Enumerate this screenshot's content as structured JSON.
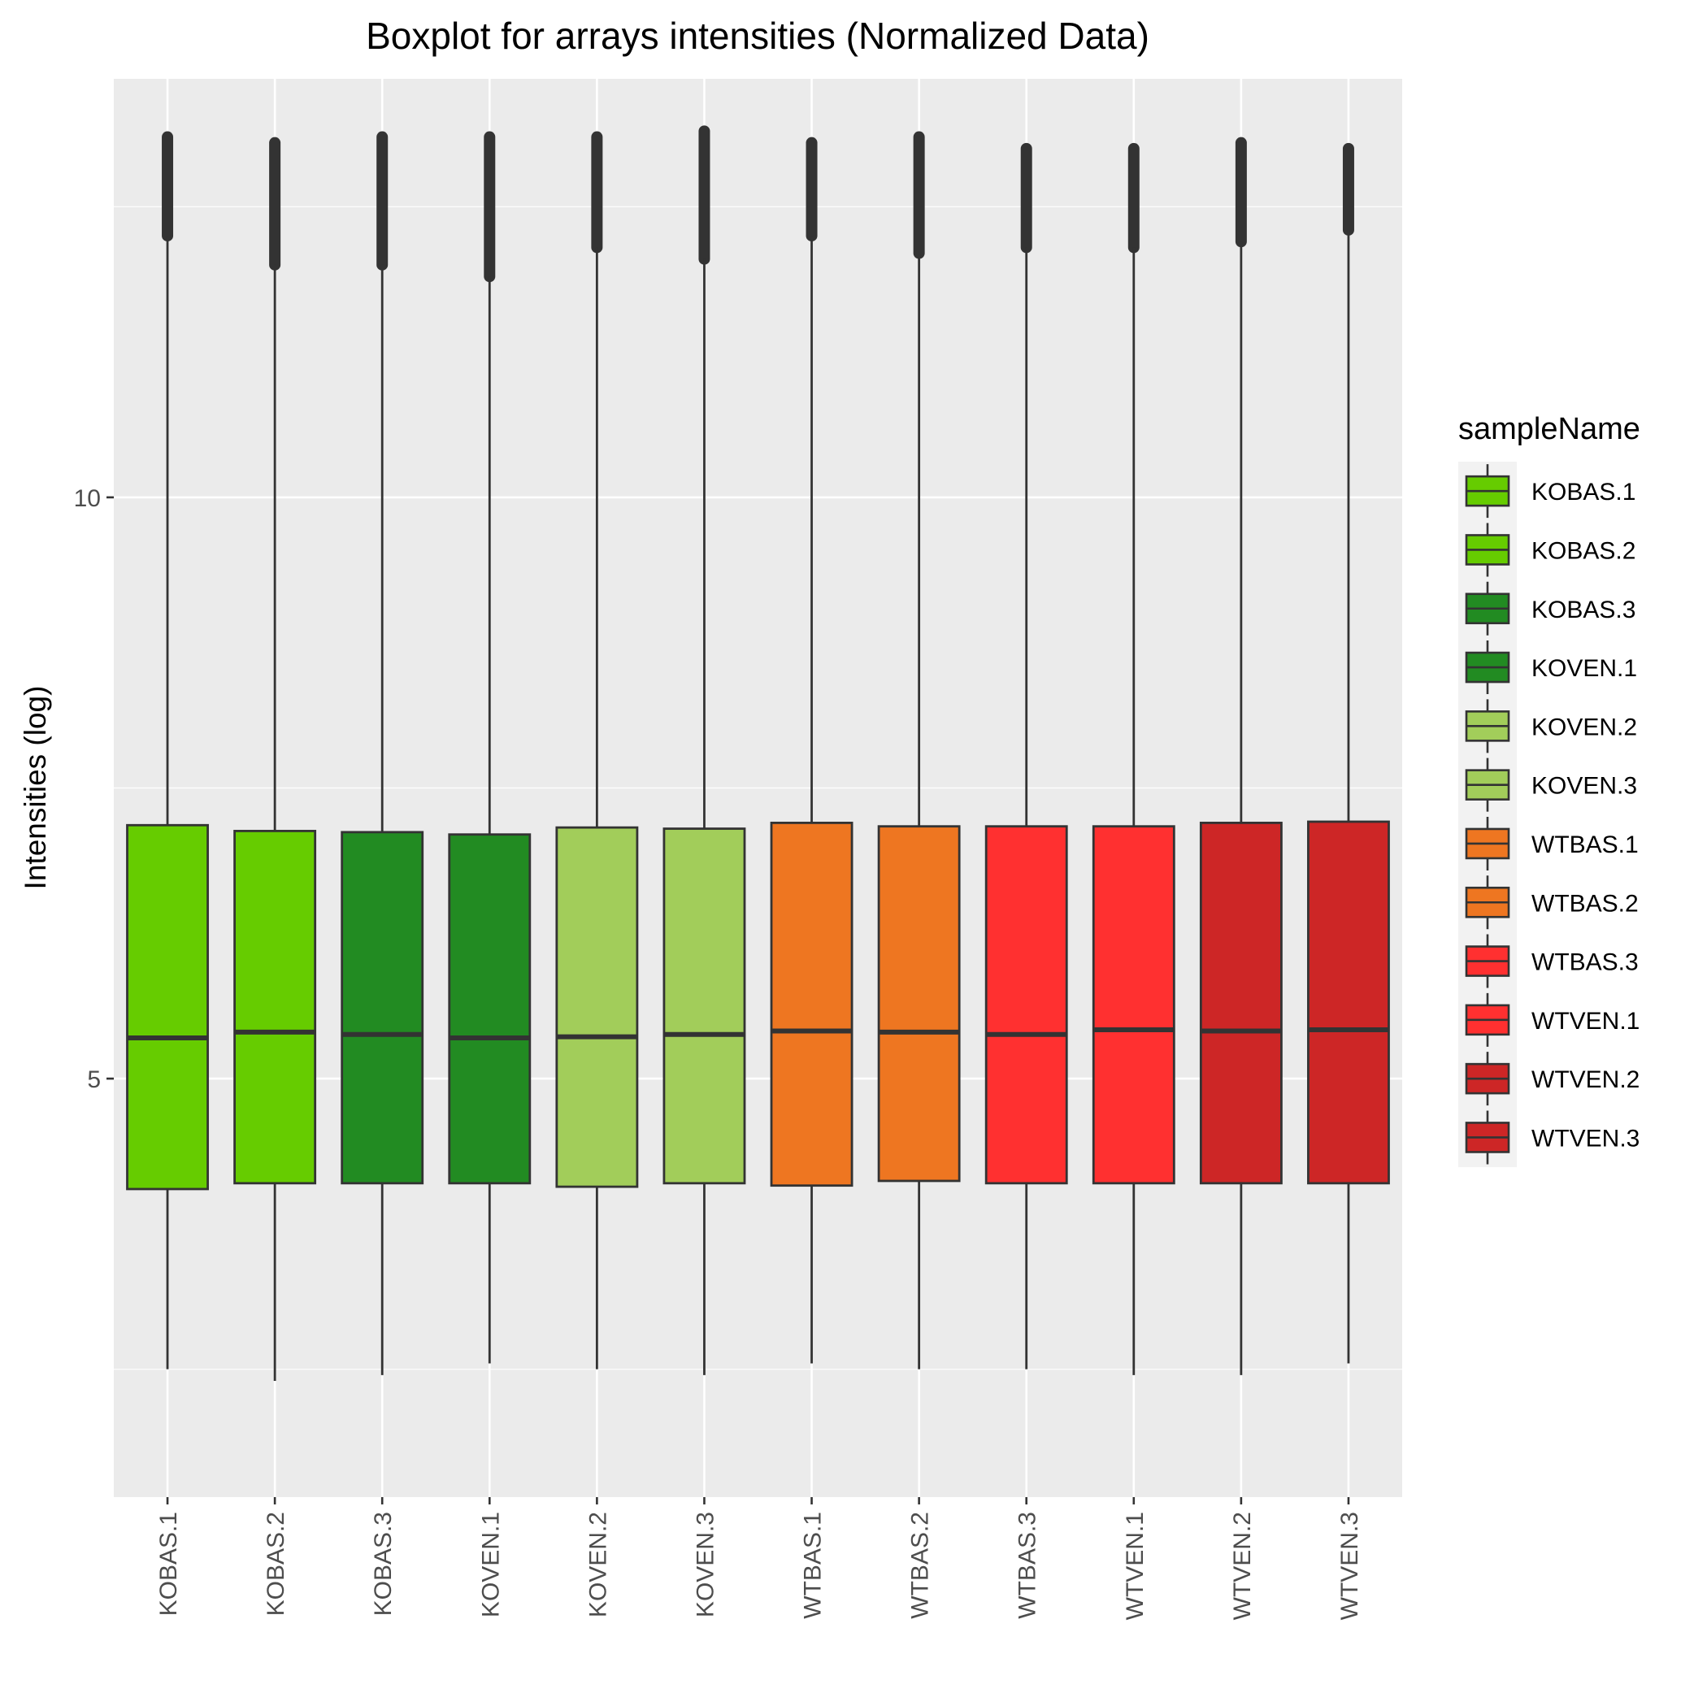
{
  "chart_data": {
    "type": "boxplot",
    "title": "Boxplot for arrays intensities (Normalized Data)",
    "xlabel": "",
    "ylabel": "Intensities (log)",
    "ylim": [
      1.4,
      13.6
    ],
    "y_ticks": [
      5,
      10
    ],
    "y_tick_labels": [
      "5",
      "10"
    ],
    "grid": true,
    "legend": {
      "title": "sampleName",
      "position": "right"
    },
    "categories": [
      "KOBAS.1",
      "KOBAS.2",
      "KOBAS.3",
      "KOVEN.1",
      "KOVEN.2",
      "KOVEN.3",
      "WTBAS.1",
      "WTBAS.2",
      "WTBAS.3",
      "WTVEN.1",
      "WTVEN.2",
      "WTVEN.3"
    ],
    "series": [
      {
        "name": "KOBAS.1",
        "color": "#66CC00",
        "whisker_low": 2.5,
        "q1": 4.05,
        "median": 5.35,
        "q3": 7.18,
        "whisker_high": 12.25,
        "outlier_max": 13.1
      },
      {
        "name": "KOBAS.2",
        "color": "#66CC00",
        "whisker_low": 2.4,
        "q1": 4.1,
        "median": 5.4,
        "q3": 7.13,
        "whisker_high": 12.0,
        "outlier_max": 13.05
      },
      {
        "name": "KOBAS.3",
        "color": "#228B22",
        "whisker_low": 2.45,
        "q1": 4.1,
        "median": 5.38,
        "q3": 7.12,
        "whisker_high": 12.0,
        "outlier_max": 13.1
      },
      {
        "name": "KOVEN.1",
        "color": "#228B22",
        "whisker_low": 2.55,
        "q1": 4.1,
        "median": 5.35,
        "q3": 7.1,
        "whisker_high": 11.9,
        "outlier_max": 13.1
      },
      {
        "name": "KOVEN.2",
        "color": "#A2CD5A",
        "whisker_low": 2.5,
        "q1": 4.07,
        "median": 5.36,
        "q3": 7.16,
        "whisker_high": 12.15,
        "outlier_max": 13.1
      },
      {
        "name": "KOVEN.3",
        "color": "#A2CD5A",
        "whisker_low": 2.45,
        "q1": 4.1,
        "median": 5.38,
        "q3": 7.15,
        "whisker_high": 12.05,
        "outlier_max": 13.15
      },
      {
        "name": "WTBAS.1",
        "color": "#EE7621",
        "whisker_low": 2.55,
        "q1": 4.08,
        "median": 5.41,
        "q3": 7.2,
        "whisker_high": 12.25,
        "outlier_max": 13.05
      },
      {
        "name": "WTBAS.2",
        "color": "#EE7621",
        "whisker_low": 2.5,
        "q1": 4.12,
        "median": 5.4,
        "q3": 7.17,
        "whisker_high": 12.1,
        "outlier_max": 13.1
      },
      {
        "name": "WTBAS.3",
        "color": "#FF3030",
        "whisker_low": 2.5,
        "q1": 4.1,
        "median": 5.38,
        "q3": 7.17,
        "whisker_high": 12.15,
        "outlier_max": 13.0
      },
      {
        "name": "WTVEN.1",
        "color": "#FF3030",
        "whisker_low": 2.45,
        "q1": 4.1,
        "median": 5.42,
        "q3": 7.17,
        "whisker_high": 12.15,
        "outlier_max": 13.0
      },
      {
        "name": "WTVEN.2",
        "color": "#CD2626",
        "whisker_low": 2.45,
        "q1": 4.1,
        "median": 5.41,
        "q3": 7.2,
        "whisker_high": 12.2,
        "outlier_max": 13.05
      },
      {
        "name": "WTVEN.3",
        "color": "#CD2626",
        "whisker_low": 2.55,
        "q1": 4.1,
        "median": 5.42,
        "q3": 7.21,
        "whisker_high": 12.3,
        "outlier_max": 13.0
      }
    ]
  }
}
